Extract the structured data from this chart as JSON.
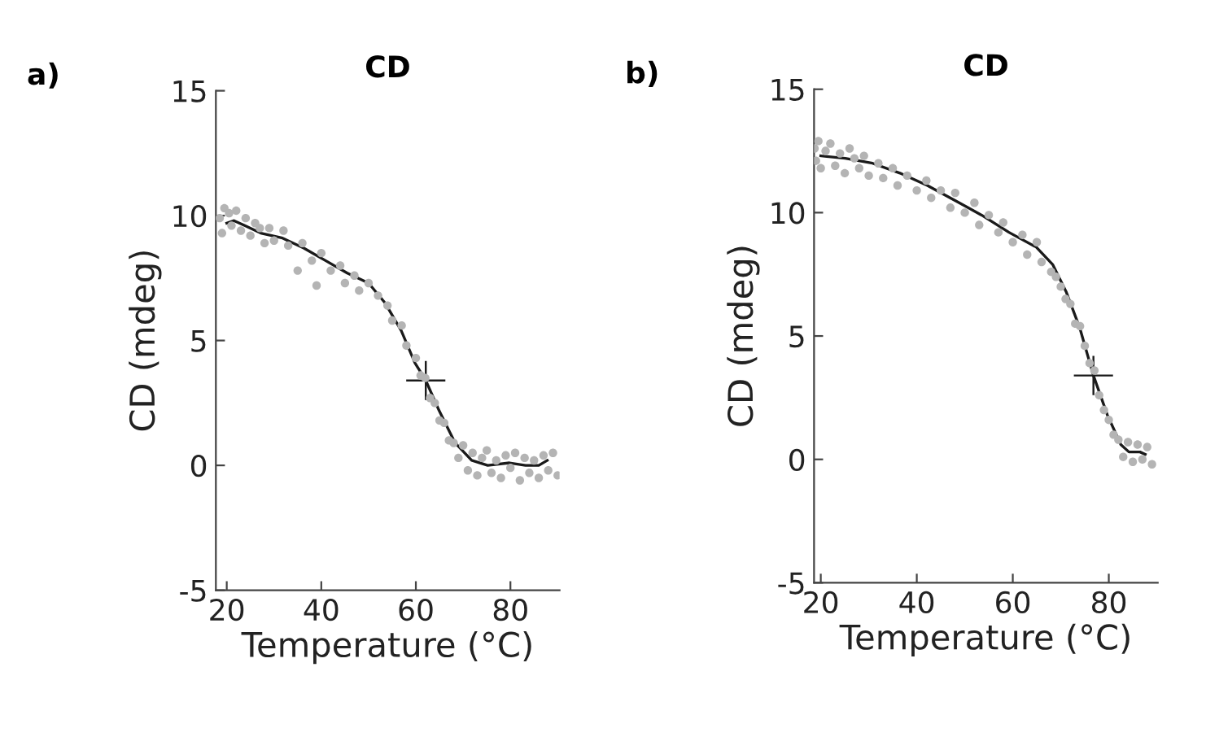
{
  "chart_data": [
    {
      "type": "scatter",
      "title": "CD",
      "xlabel": "Temperature (°C)",
      "ylabel": "CD (mdeg)",
      "annotations": [
        "a)"
      ],
      "xlim": [
        17.7,
        90.4
      ],
      "ylim": [
        -5,
        15
      ],
      "xticks": [
        20,
        40,
        60,
        80
      ],
      "yticks": [
        -5,
        0,
        5,
        10,
        15
      ],
      "grid": false,
      "legend": false,
      "series": [
        {
          "marker": "circle",
          "color": "#b4b4b4",
          "x": [
            18.5,
            19,
            19.5,
            20.5,
            21,
            22,
            23,
            24,
            25,
            26,
            27,
            28,
            29,
            30,
            32,
            33,
            35,
            36,
            38,
            39,
            40,
            42,
            44,
            45,
            47,
            48,
            50,
            52,
            54,
            55,
            57,
            58,
            60,
            61,
            62,
            63,
            64,
            65,
            66,
            67,
            68,
            69,
            70,
            71,
            72,
            73,
            74,
            75,
            76,
            77,
            78,
            79,
            80,
            81,
            82,
            83,
            84,
            85,
            86,
            87,
            88,
            89,
            90
          ],
          "values": [
            9.9,
            9.3,
            10.3,
            10.1,
            9.6,
            10.2,
            9.4,
            9.9,
            9.2,
            9.7,
            9.5,
            8.9,
            9.5,
            9.0,
            9.4,
            8.8,
            7.8,
            8.9,
            8.2,
            7.2,
            8.5,
            7.8,
            8.0,
            7.3,
            7.6,
            7.0,
            7.3,
            6.8,
            6.4,
            5.8,
            5.6,
            4.8,
            4.3,
            3.6,
            3.5,
            2.7,
            2.5,
            1.8,
            1.7,
            1.0,
            0.9,
            0.3,
            0.8,
            -0.2,
            0.5,
            -0.4,
            0.3,
            0.6,
            -0.3,
            0.2,
            -0.5,
            0.4,
            -0.1,
            0.5,
            -0.6,
            0.3,
            -0.3,
            0.2,
            -0.5,
            0.4,
            -0.2,
            0.5,
            -0.4
          ]
        },
        {
          "type": "line",
          "marker": "none",
          "line_style": "solid",
          "color": "#1a1a1a",
          "x": [
            20,
            21.5,
            23.8,
            27.2,
            31.8,
            36.3,
            40.9,
            45.5,
            50,
            53.5,
            56.9,
            59.8,
            62.1,
            64.9,
            68.3,
            71.8,
            75.2,
            79.8,
            83.2,
            86,
            87.8
          ],
          "values": [
            9.7,
            9.8,
            9.6,
            9.3,
            9.1,
            8.7,
            8.2,
            7.7,
            7.3,
            6.5,
            5.4,
            4.1,
            3.4,
            2.2,
            0.9,
            0.2,
            0.0,
            0.1,
            0.0,
            0.0,
            0.2
          ]
        },
        {
          "type": "scatter",
          "marker": "cross",
          "color": "#1a1a1a",
          "x": [
            62.1
          ],
          "values": [
            3.4
          ]
        }
      ]
    },
    {
      "type": "scatter",
      "title": "CD",
      "xlabel": "Temperature (°C)",
      "ylabel": "CD (mdeg)",
      "annotations": [
        "b)"
      ],
      "xlim": [
        18.6,
        90.2
      ],
      "ylim": [
        -5,
        15
      ],
      "xticks": [
        20,
        40,
        60,
        80
      ],
      "yticks": [
        -5,
        0,
        5,
        10,
        15
      ],
      "grid": false,
      "legend": false,
      "series": [
        {
          "marker": "circle",
          "color": "#b4b4b4",
          "x": [
            18.7,
            19,
            19.5,
            20,
            21,
            22,
            23,
            24,
            25,
            26,
            27,
            28,
            29,
            30,
            32,
            33,
            35,
            36,
            38,
            40,
            42,
            43,
            45,
            47,
            48,
            50,
            52,
            53,
            55,
            57,
            58,
            60,
            62,
            63,
            65,
            66,
            68,
            69,
            70,
            71,
            72,
            73,
            74,
            75,
            76,
            77,
            78,
            79,
            80,
            81,
            82,
            83,
            84,
            85,
            86,
            87,
            88,
            89
          ],
          "values": [
            12.6,
            12.1,
            12.9,
            11.8,
            12.5,
            12.8,
            11.9,
            12.4,
            11.6,
            12.6,
            12.2,
            11.8,
            12.3,
            11.5,
            12.0,
            11.4,
            11.8,
            11.1,
            11.5,
            10.9,
            11.3,
            10.6,
            10.9,
            10.2,
            10.8,
            10.0,
            10.4,
            9.5,
            9.9,
            9.2,
            9.6,
            8.8,
            9.1,
            8.3,
            8.8,
            8.0,
            7.6,
            7.4,
            7.0,
            6.5,
            6.3,
            5.5,
            5.4,
            4.6,
            3.9,
            3.6,
            2.6,
            2.0,
            1.6,
            1.0,
            0.8,
            0.1,
            0.7,
            -0.1,
            0.6,
            0.0,
            0.5,
            -0.2
          ]
        },
        {
          "type": "line",
          "marker": "none",
          "line_style": "solid",
          "color": "#1a1a1a",
          "x": [
            20,
            25.1,
            30.8,
            36.5,
            42.2,
            47.9,
            53.5,
            59.2,
            64.9,
            68.3,
            71.1,
            74,
            76.8,
            79.7,
            82.5,
            84.2,
            86.5,
            87.6
          ],
          "values": [
            12.3,
            12.2,
            12.0,
            11.6,
            11.1,
            10.5,
            9.9,
            9.2,
            8.6,
            7.9,
            6.8,
            5.3,
            3.4,
            1.8,
            0.6,
            0.3,
            0.3,
            0.2
          ]
        },
        {
          "type": "scatter",
          "marker": "cross",
          "color": "#1a1a1a",
          "x": [
            76.8
          ],
          "values": [
            3.4
          ]
        }
      ]
    }
  ]
}
